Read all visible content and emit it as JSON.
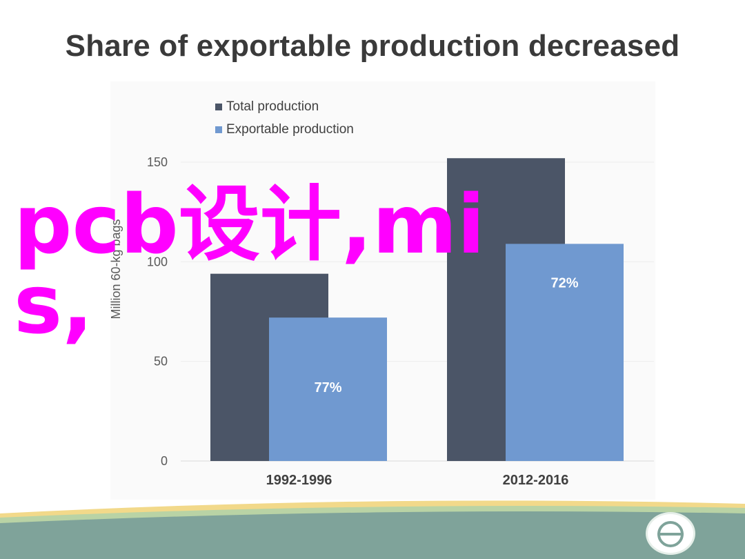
{
  "slide": {
    "title": "Share of exportable production decreased",
    "watermark": "pcb设计,mis,"
  },
  "chart_data": {
    "type": "bar",
    "categories": [
      "1992-1996",
      "2012-2016"
    ],
    "series": [
      {
        "name": "Total production",
        "values": [
          94,
          152
        ],
        "color": "#4b5567"
      },
      {
        "name": "Exportable production",
        "values": [
          72,
          109
        ],
        "color": "#7099d0",
        "labels": [
          "77%",
          "72%"
        ]
      }
    ],
    "ylabel": "Million 60-kg bags",
    "yticks": [
      0,
      50,
      100,
      150
    ],
    "ylim": [
      0,
      150
    ],
    "legend": "top-left",
    "grid": true
  },
  "colors": {
    "footer_band": "#7fa39a",
    "footer_stripe_yellow": "#f2d98a",
    "footer_stripe_green": "#b9d3a5"
  },
  "icons": {
    "footer_logo": "circle-logo-icon"
  }
}
